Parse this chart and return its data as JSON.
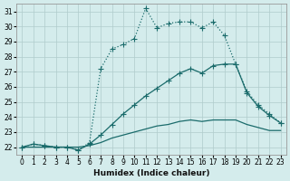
{
  "xlabel": "Humidex (Indice chaleur)",
  "xlim": [
    -0.5,
    23.5
  ],
  "ylim": [
    21.5,
    31.5
  ],
  "xticks": [
    0,
    1,
    2,
    3,
    4,
    5,
    6,
    7,
    8,
    9,
    10,
    11,
    12,
    13,
    14,
    15,
    16,
    17,
    18,
    19,
    20,
    21,
    22,
    23
  ],
  "yticks": [
    22,
    23,
    24,
    25,
    26,
    27,
    28,
    29,
    30,
    31
  ],
  "background_color": "#d4ecec",
  "grid_color": "#b0cccc",
  "line_color": "#1a6b6b",
  "curves": [
    {
      "x": [
        0,
        1,
        2,
        3,
        4,
        5,
        6,
        7,
        8,
        9,
        10,
        11,
        12,
        13,
        14,
        15,
        16,
        17,
        18,
        19,
        20,
        21,
        22,
        23
      ],
      "y": [
        22.0,
        22.2,
        22.1,
        22.0,
        22.0,
        21.8,
        22.3,
        27.2,
        28.5,
        28.8,
        29.2,
        31.2,
        29.9,
        30.2,
        30.3,
        30.3,
        29.9,
        30.3,
        29.4,
        27.5,
        25.7,
        24.8,
        24.2,
        23.6
      ],
      "linestyle": "dotted",
      "linewidth": 0.9,
      "marker": "+",
      "markersize": 4
    },
    {
      "x": [
        0,
        1,
        2,
        3,
        4,
        5,
        6,
        7,
        8,
        9,
        10,
        11,
        12,
        13,
        14,
        15,
        16,
        17,
        18,
        19,
        20,
        21,
        22,
        23
      ],
      "y": [
        22.0,
        22.2,
        22.1,
        22.0,
        22.0,
        21.8,
        22.2,
        22.8,
        23.5,
        24.2,
        24.8,
        25.4,
        25.9,
        26.4,
        26.9,
        27.2,
        26.9,
        27.4,
        27.5,
        27.5,
        25.6,
        24.7,
        24.1,
        23.6
      ],
      "linestyle": "solid",
      "linewidth": 0.9,
      "marker": "+",
      "markersize": 4
    },
    {
      "x": [
        0,
        1,
        2,
        3,
        4,
        5,
        6,
        7,
        8,
        9,
        10,
        11,
        12,
        13,
        14,
        15,
        16,
        17,
        18,
        19,
        20,
        21,
        22,
        23
      ],
      "y": [
        22.0,
        22.0,
        22.0,
        22.0,
        22.0,
        22.0,
        22.1,
        22.3,
        22.6,
        22.8,
        23.0,
        23.2,
        23.4,
        23.5,
        23.7,
        23.8,
        23.7,
        23.8,
        23.8,
        23.8,
        23.5,
        23.3,
        23.1,
        23.1
      ],
      "linestyle": "solid",
      "linewidth": 0.9,
      "marker": null,
      "markersize": 0
    }
  ]
}
